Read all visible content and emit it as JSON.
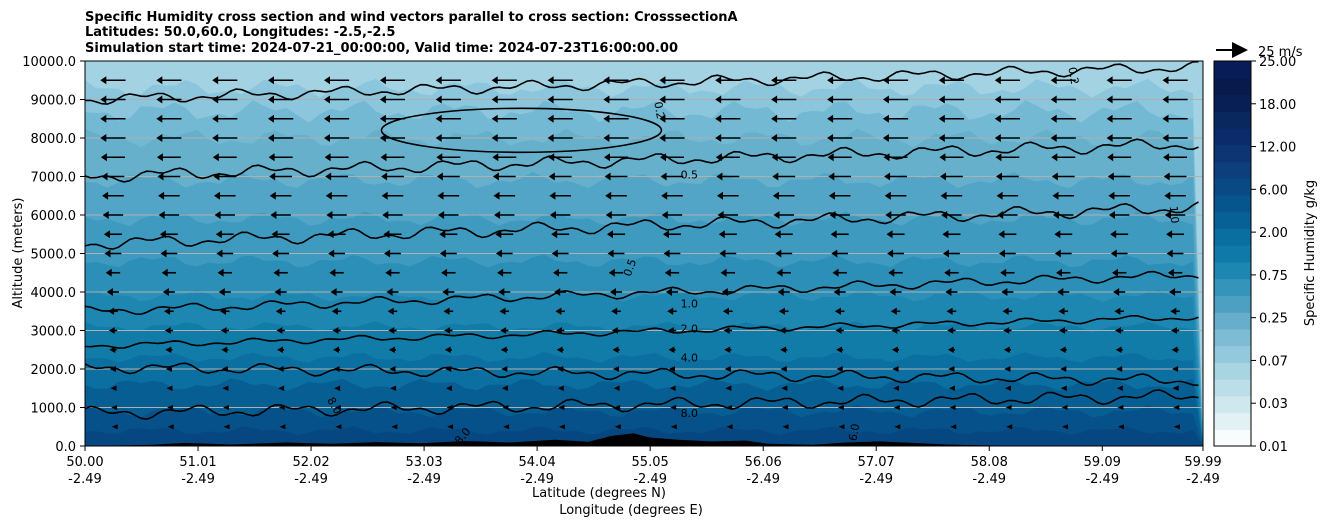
{
  "chart_data": {
    "type": "contour-cross-section",
    "title_lines": [
      "Specific Humidity cross section and wind vectors parallel to cross section: CrosssectionA",
      "Latitudes: 50.0,60.0, Longitudes: -2.5,-2.5",
      "Simulation start time: 2024-07-21_00:00:00, Valid time: 2024-07-23T16:00:00.00"
    ],
    "xlabel": "Latitude (degrees N)",
    "xlabel2": "Longitude (degrees E)",
    "ylabel": "Altitude (meters)",
    "xlim": [
      50.0,
      59.99
    ],
    "ylim": [
      0,
      10000
    ],
    "x_ticks": [
      {
        "lat": "50.00",
        "lon": "-2.49",
        "value": 50.0
      },
      {
        "lat": "51.01",
        "lon": "-2.49",
        "value": 51.01
      },
      {
        "lat": "52.02",
        "lon": "-2.49",
        "value": 52.02
      },
      {
        "lat": "53.03",
        "lon": "-2.49",
        "value": 53.03
      },
      {
        "lat": "54.04",
        "lon": "-2.49",
        "value": 54.04
      },
      {
        "lat": "55.05",
        "lon": "-2.49",
        "value": 55.05
      },
      {
        "lat": "56.06",
        "lon": "-2.49",
        "value": 56.06
      },
      {
        "lat": "57.07",
        "lon": "-2.49",
        "value": 57.07
      },
      {
        "lat": "58.08",
        "lon": "-2.49",
        "value": 58.08
      },
      {
        "lat": "59.09",
        "lon": "-2.49",
        "value": 59.09
      },
      {
        "lat": "59.99",
        "lon": "-2.49",
        "value": 59.99
      }
    ],
    "y_ticks": [
      {
        "label": "0.0",
        "value": 0
      },
      {
        "label": "1000.0",
        "value": 1000
      },
      {
        "label": "2000.0",
        "value": 2000
      },
      {
        "label": "3000.0",
        "value": 3000
      },
      {
        "label": "4000.0",
        "value": 4000
      },
      {
        "label": "5000.0",
        "value": 5000
      },
      {
        "label": "6000.0",
        "value": 6000
      },
      {
        "label": "7000.0",
        "value": 7000
      },
      {
        "label": "8000.0",
        "value": 8000
      },
      {
        "label": "9000.0",
        "value": 9000
      },
      {
        "label": "10000.0",
        "value": 10000
      }
    ],
    "horizontal_grid": true,
    "colorbar": {
      "label": "Specific Humidity g/kg",
      "tick_labels": [
        "0.01",
        "0.03",
        "0.07",
        "0.25",
        "0.75",
        "2.00",
        "6.00",
        "12.00",
        "18.00",
        "25.00"
      ],
      "colors": [
        "#f7fcfd",
        "#e2f1f3",
        "#cfe8ee",
        "#bcdee8",
        "#a9d4e2",
        "#93c9dc",
        "#7dbcd4",
        "#66aecb",
        "#4ea0c2",
        "#3594ba",
        "#1d87b2",
        "#0f7aa8",
        "#0a6ea0",
        "#066196",
        "#06558c",
        "#094a84",
        "#0c3f7c",
        "#0e3573",
        "#0b2b6b",
        "#08285e",
        "#081f55",
        "#081a4c",
        "#081d58"
      ]
    },
    "wind_key": {
      "label": "25 m/s",
      "value": 25
    },
    "wind_vectors": {
      "direction": "southward (toward decreasing latitude)",
      "levels_m": [
        500,
        1000,
        1500,
        2000,
        2500,
        3000,
        3500,
        4000,
        4500,
        5000,
        5500,
        6000,
        6500,
        7000,
        7500,
        8000,
        8500,
        9000,
        9500
      ],
      "speed_m_s": [
        2,
        3,
        4,
        5,
        6,
        7,
        8,
        10,
        12,
        14,
        15,
        17,
        18,
        19,
        20,
        21,
        21,
        21,
        21
      ]
    },
    "contour_labels": [
      {
        "text": "0.5",
        "lat": 55.4,
        "alt": 6950
      },
      {
        "text": "0.5",
        "lat": 54.9,
        "alt": 4600,
        "rot": -70
      },
      {
        "text": "1.0",
        "lat": 55.4,
        "alt": 3600
      },
      {
        "text": "2.0",
        "lat": 55.4,
        "alt": 2950
      },
      {
        "text": "4.0",
        "lat": 55.4,
        "alt": 2200
      },
      {
        "text": "8.0",
        "lat": 55.4,
        "alt": 750
      },
      {
        "text": "8.0",
        "lat": 52.2,
        "alt": 1000,
        "rot": 60
      },
      {
        "text": "8.0",
        "lat": 53.4,
        "alt": 200,
        "rot": -50
      },
      {
        "text": "0.2",
        "lat": 55.1,
        "alt": 8700,
        "rot": 80
      },
      {
        "text": "0.2",
        "lat": 58.8,
        "alt": 9600,
        "rot": 80
      },
      {
        "text": "1.0",
        "lat": 59.7,
        "alt": 6000,
        "rot": 85
      },
      {
        "text": "16.0",
        "lat": 56.9,
        "alt": 250,
        "rot": -80
      }
    ]
  }
}
